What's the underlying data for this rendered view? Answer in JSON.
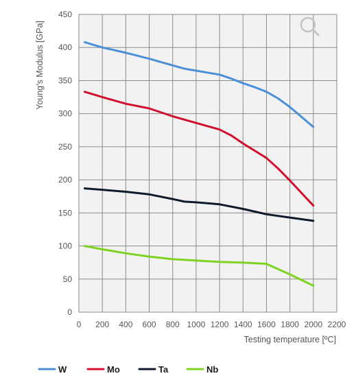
{
  "chart_data": {
    "type": "line",
    "title": "",
    "xlabel": "Testing temperature [ºC]",
    "ylabel": "Young's Modulus [GPa]",
    "xlim": [
      0,
      2200
    ],
    "ylim": [
      0,
      450
    ],
    "xticks": [
      0,
      200,
      400,
      600,
      800,
      1000,
      1200,
      1400,
      1600,
      1800,
      2000,
      2200
    ],
    "yticks": [
      0,
      50,
      100,
      150,
      200,
      250,
      300,
      350,
      400,
      450
    ],
    "grid": true,
    "legend_position": "bottom",
    "background_color": "#f2f2f2",
    "grid_color": "#8a8a8a",
    "series": [
      {
        "name": "W",
        "color": "#4a90d9",
        "x": [
          50,
          200,
          400,
          600,
          800,
          900,
          1000,
          1200,
          1300,
          1400,
          1500,
          1600,
          1700,
          1800,
          2000
        ],
        "y": [
          408,
          400,
          392,
          383,
          373,
          368,
          365,
          359,
          353,
          346,
          340,
          333,
          323,
          310,
          280
        ]
      },
      {
        "name": "Mo",
        "color": "#d0102c",
        "x": [
          50,
          200,
          400,
          600,
          800,
          1000,
          1200,
          1300,
          1400,
          1500,
          1600,
          1700,
          1800,
          2000
        ],
        "y": [
          333,
          325,
          315,
          308,
          296,
          286,
          276,
          267,
          255,
          244,
          233,
          217,
          199,
          161
        ]
      },
      {
        "name": "Ta",
        "color": "#0d1b2a",
        "x": [
          50,
          200,
          400,
          600,
          800,
          900,
          1000,
          1200,
          1400,
          1600,
          1800,
          2000
        ],
        "y": [
          187,
          185,
          182,
          178,
          171,
          167,
          166,
          163,
          156,
          148,
          143,
          138
        ]
      },
      {
        "name": "Nb",
        "color": "#7ed321",
        "x": [
          50,
          200,
          400,
          600,
          800,
          1000,
          1200,
          1400,
          1600,
          1800,
          2000
        ],
        "y": [
          100,
          95,
          89,
          84,
          80,
          78,
          76,
          75,
          73,
          57,
          40
        ]
      }
    ]
  },
  "icons": {
    "zoom": "magnifier-icon"
  }
}
